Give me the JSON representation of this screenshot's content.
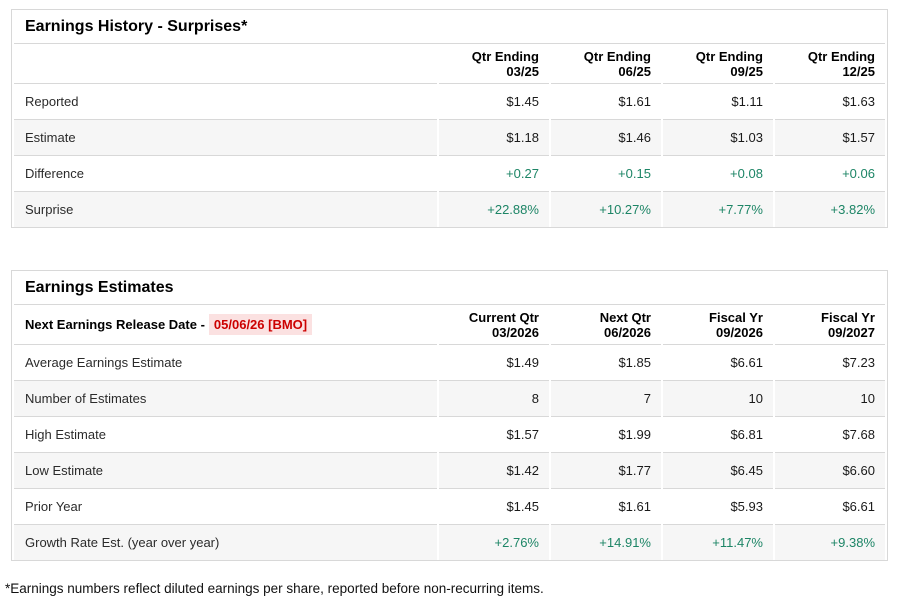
{
  "colors": {
    "green_positive": "#1d8566",
    "red_date": "#cc0000",
    "red_date_background": "#fbe1e1",
    "row_stripe": "#f6f6f6",
    "table_border": "#d8d8d8"
  },
  "surprises_table": {
    "title": "Earnings History - Surprises*",
    "columns": [
      {
        "line1": "Qtr Ending",
        "line2": "03/25"
      },
      {
        "line1": "Qtr Ending",
        "line2": "06/25"
      },
      {
        "line1": "Qtr Ending",
        "line2": "09/25"
      },
      {
        "line1": "Qtr Ending",
        "line2": "12/25"
      }
    ],
    "rows": [
      {
        "label": "Reported",
        "values": [
          "$1.45",
          "$1.61",
          "$1.11",
          "$1.63"
        ],
        "color": "default"
      },
      {
        "label": "Estimate",
        "values": [
          "$1.18",
          "$1.46",
          "$1.03",
          "$1.57"
        ],
        "color": "default"
      },
      {
        "label": "Difference",
        "values": [
          "+0.27",
          "+0.15",
          "+0.08",
          "+0.06"
        ],
        "color": "green"
      },
      {
        "label": "Surprise",
        "values": [
          "+22.88%",
          "+10.27%",
          "+7.77%",
          "+3.82%"
        ],
        "color": "green"
      }
    ]
  },
  "estimates_table": {
    "title": "Earnings Estimates",
    "release_date_label": "Next Earnings Release Date -",
    "release_date_value": "05/06/26 [BMO]",
    "columns": [
      {
        "line1": "Current Qtr",
        "line2": "03/2026"
      },
      {
        "line1": "Next Qtr",
        "line2": "06/2026"
      },
      {
        "line1": "Fiscal Yr",
        "line2": "09/2026"
      },
      {
        "line1": "Fiscal Yr",
        "line2": "09/2027"
      }
    ],
    "rows": [
      {
        "label": "Average Earnings Estimate",
        "values": [
          "$1.49",
          "$1.85",
          "$6.61",
          "$7.23"
        ],
        "color": "default"
      },
      {
        "label": "Number of Estimates",
        "values": [
          "8",
          "7",
          "10",
          "10"
        ],
        "color": "default"
      },
      {
        "label": "High Estimate",
        "values": [
          "$1.57",
          "$1.99",
          "$6.81",
          "$7.68"
        ],
        "color": "default"
      },
      {
        "label": "Low Estimate",
        "values": [
          "$1.42",
          "$1.77",
          "$6.45",
          "$6.60"
        ],
        "color": "default"
      },
      {
        "label": "Prior Year",
        "values": [
          "$1.45",
          "$1.61",
          "$5.93",
          "$6.61"
        ],
        "color": "default"
      },
      {
        "label": "Growth Rate Est. (year over year)",
        "values": [
          "+2.76%",
          "+14.91%",
          "+11.47%",
          "+9.38%"
        ],
        "color": "green"
      }
    ]
  },
  "footnote": "*Earnings numbers reflect diluted earnings per share, reported before non-recurring items."
}
